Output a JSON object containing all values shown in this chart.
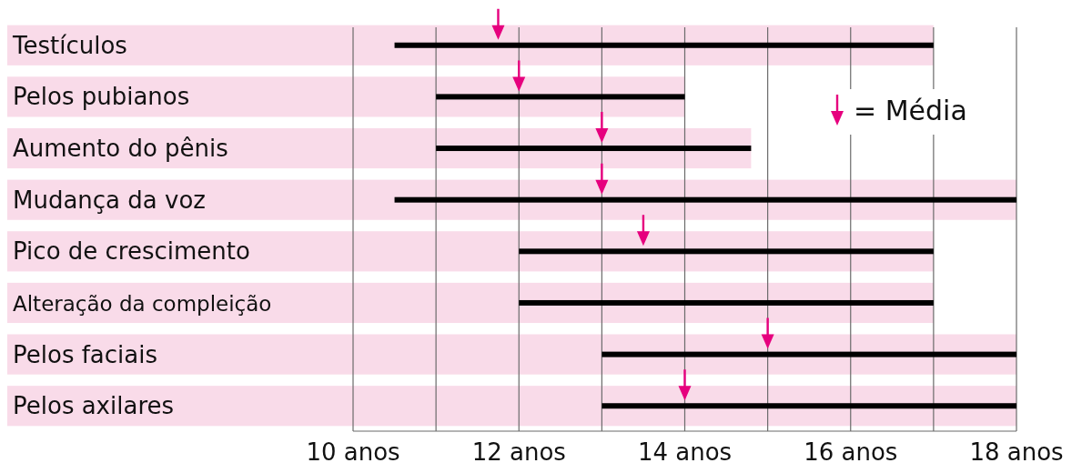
{
  "chart_data": {
    "type": "bar",
    "orientation": "horizontal",
    "categories": [
      "Testículos",
      "Pelos pubianos",
      "Aumento do pênis",
      "Mudança da voz",
      "Pico de crescimento",
      "Alteração da compleição",
      "Pelos faciais",
      "Pelos axilares"
    ],
    "series": [
      {
        "type": "bar",
        "color": "#f9dbe9",
        "base": [
          10,
          10,
          10,
          10,
          10,
          10,
          10,
          10
        ],
        "values": [
          7,
          4,
          4.8,
          8,
          7,
          7,
          8,
          8
        ]
      },
      {
        "type": "bar",
        "color": "#000000",
        "base": [
          10.5,
          11,
          11,
          10.5,
          12,
          12,
          13,
          13
        ],
        "values": [
          6.5,
          3,
          3.8,
          7.5,
          5,
          5,
          5,
          5
        ]
      },
      {
        "type": "scatter",
        "name": "= Média",
        "color": "#e6007e",
        "values": [
          11.75,
          12,
          13,
          13,
          13.5,
          null,
          15,
          14
        ]
      }
    ],
    "xlim": [
      10,
      18
    ],
    "xticks": [
      {
        "value": 10,
        "label": "10 anos"
      },
      {
        "value": 11,
        "label": null
      },
      {
        "value": 12,
        "label": "12 anos"
      },
      {
        "value": 13,
        "label": null
      },
      {
        "value": 14,
        "label": "14 anos"
      },
      {
        "value": 15,
        "label": null
      },
      {
        "value": 16,
        "label": "16 anos"
      },
      {
        "value": 17,
        "label": null
      },
      {
        "value": 18,
        "label": "18 anos"
      }
    ],
    "grid": "x",
    "legend": "right",
    "marker": "triangle"
  }
}
